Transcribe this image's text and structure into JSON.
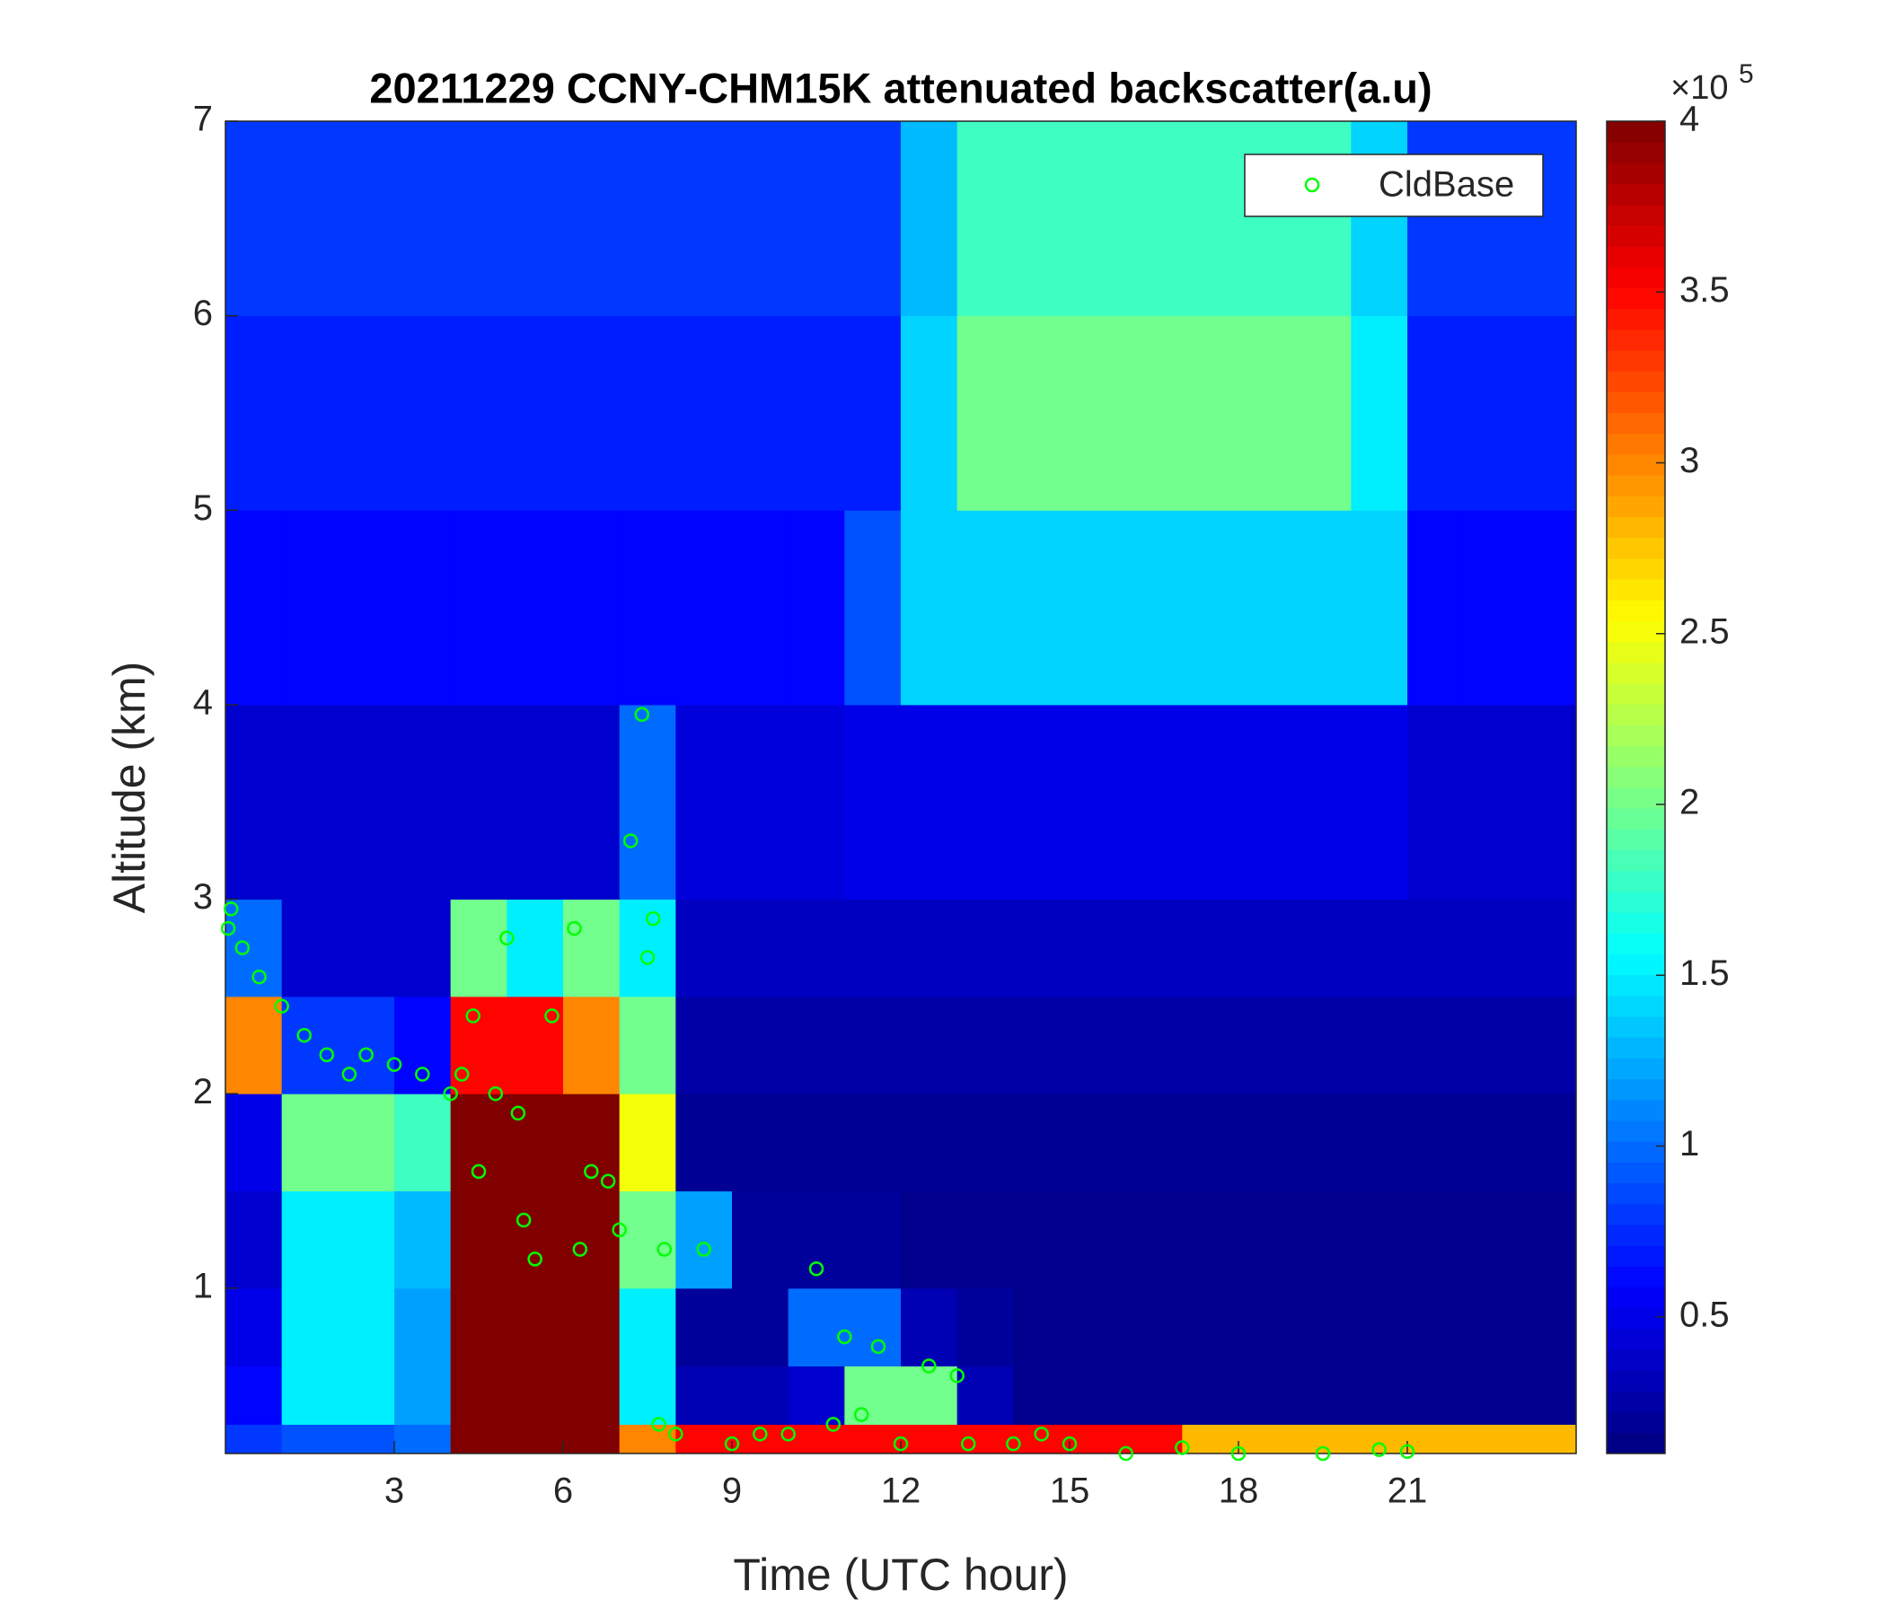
{
  "chart_data": {
    "type": "heatmap",
    "title": "20211229 CCNY-CHM15K attenuated backscatter(a.u)",
    "xlabel": "Time (UTC hour)",
    "ylabel": "Altitude (km)",
    "xlim": [
      0,
      24
    ],
    "ylim": [
      0.15,
      7
    ],
    "xticks": [
      3,
      6,
      9,
      12,
      15,
      18,
      21
    ],
    "yticks": [
      1,
      2,
      3,
      4,
      5,
      6,
      7
    ],
    "xbins": [
      0,
      1,
      2,
      3,
      4,
      5,
      6,
      7,
      8,
      9,
      10,
      11,
      12,
      13,
      14,
      15,
      16,
      17,
      18,
      19,
      20,
      21,
      22,
      23,
      24
    ],
    "ybins": [
      0.15,
      0.3,
      0.6,
      1,
      1.5,
      2,
      2.5,
      3,
      4,
      5,
      6,
      7
    ],
    "z": [
      [
        0.8,
        0.9,
        0.9,
        1.0,
        4,
        4,
        4,
        3.0,
        3.5,
        3.5,
        3.5,
        3.5,
        3.5,
        3.5,
        3.5,
        3.5,
        3.5,
        2.8,
        2.8,
        2.8,
        2.8,
        2.8,
        2.8,
        2.8
      ],
      [
        0.6,
        1.5,
        1.5,
        1.2,
        4,
        4,
        4,
        1.5,
        0.3,
        0.3,
        0.4,
        2.0,
        2.0,
        0.3,
        0.15,
        0.15,
        0.15,
        0.15,
        0.15,
        0.15,
        0.15,
        0.15,
        0.15,
        0.15
      ],
      [
        0.5,
        1.5,
        1.5,
        1.2,
        4,
        4,
        4,
        1.5,
        0.2,
        0.2,
        1.0,
        1.0,
        0.3,
        0.2,
        0.15,
        0.15,
        0.15,
        0.15,
        0.15,
        0.15,
        0.15,
        0.15,
        0.15,
        0.15
      ],
      [
        0.4,
        1.5,
        1.5,
        1.3,
        4,
        4,
        4,
        2.0,
        1.2,
        0.2,
        0.2,
        0.2,
        0.15,
        0.15,
        0.15,
        0.15,
        0.15,
        0.15,
        0.15,
        0.15,
        0.15,
        0.15,
        0.15,
        0.15
      ],
      [
        0.5,
        2.0,
        2.0,
        1.8,
        4,
        4,
        4,
        2.5,
        0.18,
        0.18,
        0.18,
        0.18,
        0.18,
        0.18,
        0.18,
        0.18,
        0.18,
        0.18,
        0.18,
        0.18,
        0.18,
        0.18,
        0.18,
        0.18
      ],
      [
        3.0,
        0.8,
        0.8,
        0.6,
        3.5,
        3.5,
        3.0,
        2.0,
        0.25,
        0.25,
        0.25,
        0.25,
        0.25,
        0.25,
        0.25,
        0.25,
        0.25,
        0.25,
        0.25,
        0.25,
        0.25,
        0.25,
        0.25,
        0.25
      ],
      [
        1.0,
        0.4,
        0.4,
        0.4,
        2.0,
        1.5,
        2.0,
        1.5,
        0.35,
        0.35,
        0.35,
        0.35,
        0.35,
        0.35,
        0.35,
        0.35,
        0.35,
        0.35,
        0.35,
        0.35,
        0.35,
        0.35,
        0.35,
        0.35
      ],
      [
        0.4,
        0.4,
        0.4,
        0.4,
        0.4,
        0.4,
        0.4,
        1.0,
        0.45,
        0.45,
        0.45,
        0.5,
        0.5,
        0.5,
        0.5,
        0.5,
        0.5,
        0.5,
        0.5,
        0.5,
        0.5,
        0.4,
        0.4,
        0.4
      ],
      [
        0.6,
        0.6,
        0.6,
        0.6,
        0.6,
        0.6,
        0.6,
        0.6,
        0.6,
        0.6,
        0.6,
        0.9,
        1.4,
        1.4,
        1.4,
        1.4,
        1.4,
        1.4,
        1.4,
        1.4,
        1.4,
        0.6,
        0.6,
        0.6
      ],
      [
        0.7,
        0.7,
        0.7,
        0.7,
        0.7,
        0.7,
        0.7,
        0.7,
        0.7,
        0.7,
        0.7,
        0.7,
        1.4,
        2.0,
        2.0,
        2.0,
        2.0,
        2.0,
        2.0,
        2.0,
        1.5,
        0.7,
        0.7,
        0.7
      ],
      [
        0.8,
        0.8,
        0.8,
        0.8,
        0.8,
        0.8,
        0.8,
        0.8,
        0.8,
        0.8,
        0.8,
        0.8,
        1.3,
        1.8,
        1.8,
        1.8,
        1.8,
        1.8,
        1.8,
        1.8,
        1.4,
        0.8,
        0.8,
        0.8
      ]
    ],
    "colormap": "jet",
    "clim": [
      0.1,
      4
    ],
    "colorbar_ticks": [
      0.5,
      1,
      1.5,
      2,
      2.5,
      3,
      3.5,
      4
    ],
    "colorbar_scale": "×10",
    "colorbar_scale_exponent": "5",
    "legend": "upper right",
    "series": [
      {
        "name": "CldBase",
        "type": "scatter",
        "color": "#00ff00",
        "x": [
          0.05,
          0.1,
          0.3,
          0.6,
          1,
          1.4,
          1.8,
          2.2,
          2.5,
          3,
          3.5,
          4,
          4.2,
          4.4,
          4.5,
          4.8,
          5,
          5.2,
          5.3,
          5.5,
          5.8,
          6.2,
          6.3,
          6.5,
          6.8,
          7,
          7.2,
          7.4,
          7.5,
          7.6,
          7.7,
          7.8,
          8,
          8.5,
          9,
          9.5,
          10,
          10.5,
          10.8,
          11,
          11.3,
          11.6,
          12,
          12.5,
          13,
          13.2,
          14,
          14.5,
          15,
          16,
          17,
          18,
          19.5,
          20.5,
          21
        ],
        "values": [
          2.85,
          2.95,
          2.75,
          2.6,
          2.45,
          2.3,
          2.2,
          2.1,
          2.2,
          2.15,
          2.1,
          2.0,
          2.1,
          2.4,
          1.6,
          2.0,
          2.8,
          1.9,
          1.35,
          1.15,
          2.4,
          2.85,
          1.2,
          1.6,
          1.55,
          1.3,
          3.3,
          3.95,
          2.7,
          2.9,
          0.3,
          1.2,
          0.25,
          1.2,
          0.2,
          0.25,
          0.25,
          1.1,
          0.3,
          0.75,
          0.35,
          0.7,
          0.2,
          0.6,
          0.55,
          0.2,
          0.2,
          0.25,
          0.2,
          0.15,
          0.18,
          0.15,
          0.15,
          0.17,
          0.16
        ]
      }
    ]
  }
}
